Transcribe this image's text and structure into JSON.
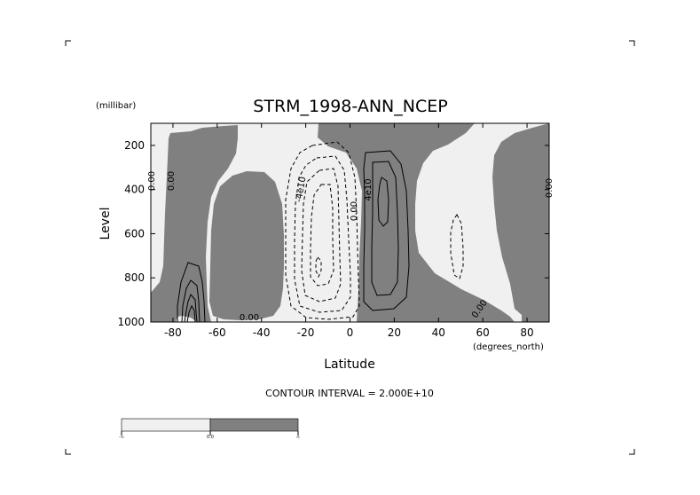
{
  "chart_data": {
    "type": "contour",
    "title": "STRM_1998-ANN_NCEP",
    "xlabel": "Latitude",
    "x_units": "(degrees_north)",
    "ylabel": "Level",
    "y_units": "(millibar)",
    "xlim": [
      -90,
      90
    ],
    "ylim": [
      1000,
      100
    ],
    "x_ticks": [
      -80,
      -60,
      -40,
      -20,
      0,
      20,
      40,
      60,
      80
    ],
    "y_ticks": [
      200,
      400,
      600,
      800,
      1000
    ],
    "contour_interval_text": "CONTOUR INTERVAL = 2.000E+10",
    "contour_labels": [
      {
        "text": "0.00",
        "lat": -85,
        "level": 300
      },
      {
        "text": "0.00",
        "lat": -78,
        "level": 300
      },
      {
        "text": "-4e10",
        "lat": -21,
        "level": 390
      },
      {
        "text": "0.00",
        "lat": 2,
        "level": 500
      },
      {
        "text": "4e10",
        "lat": 8,
        "level": 390
      },
      {
        "text": "0.00",
        "lat": -46,
        "level": 990
      },
      {
        "text": "0.00",
        "lat": 59,
        "level": 960
      },
      {
        "text": "0.00",
        "lat": 89,
        "level": 330
      }
    ],
    "colorbar": {
      "labels": [
        "-∞",
        "0.0",
        "∞"
      ],
      "colors": [
        "#f0f0f0",
        "#808080"
      ]
    }
  }
}
